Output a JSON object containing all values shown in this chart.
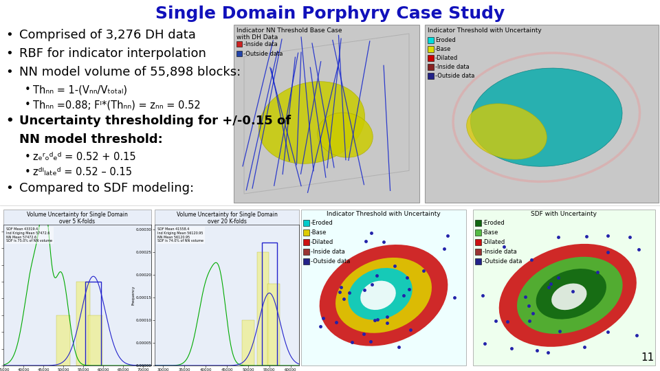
{
  "title": "Single Domain Porphyry Case Study",
  "title_color": "#1111BB",
  "title_fontsize": 20,
  "background_color": "#FFFFFF",
  "page_number": "11",
  "bullets": [
    {
      "indent": 0,
      "bold": false,
      "text": "Comprised of 3,276 DH data"
    },
    {
      "indent": 0,
      "bold": false,
      "text": "RBF for indicator interpolation"
    },
    {
      "indent": 0,
      "bold": false,
      "text": "NN model volume of 55,898 blocks:"
    },
    {
      "indent": 1,
      "bold": false,
      "text": "Thₙₙ = 1-(Vₙₙ/Vₜₒₜₐₗ)"
    },
    {
      "indent": 1,
      "bold": false,
      "text": "Thₙₙ =0.88; Fᴵ*(Thₙₙ) = zₙₙ = 0.52"
    },
    {
      "indent": 0,
      "bold": true,
      "text": "Uncertainty thresholding for +/-0.15 of"
    },
    {
      "indent": 0,
      "bold": true,
      "text": "NN model threshold:",
      "no_bullet": true
    },
    {
      "indent": 1,
      "bold": false,
      "text": "zₑʳₒᵈₑᵈ = 0.52 + 0.15"
    },
    {
      "indent": 1,
      "bold": false,
      "text": "zᵈᴵₗₐₜₑᵈ = 0.52 – 0.15"
    },
    {
      "indent": 0,
      "bold": false,
      "text": "Compared to SDF modeling:"
    }
  ],
  "top_img1_label": "Indicator NN Threshold Base Case\nwith DH Data",
  "top_img1_legend": [
    {
      "color": "#CC2222",
      "label": "-Inside data"
    },
    {
      "color": "#2244AA",
      "label": "-Outside data"
    }
  ],
  "top_img1_bg": "#D8D8D8",
  "top_img1_3d_face": "#C8C8C8",
  "top_img2_label": "Indicator Threshold with Uncertainty",
  "top_img2_legend": [
    {
      "color": "#00DDDD",
      "label": "Eroded"
    },
    {
      "color": "#DDDD00",
      "label": "-Base"
    },
    {
      "color": "#CC0000",
      "label": "-Dilated"
    },
    {
      "color": "#882222",
      "label": "-Inside data"
    },
    {
      "color": "#222288",
      "label": "-Outside data"
    }
  ],
  "top_img2_bg": "#D8D8D8",
  "bot_chart1_label": "Volume Uncertainty for Single Domain\nover 5 K-folds",
  "bot_chart1_bg": "#E8EEF8",
  "bot_chart2_label": "Volume Uncertainty for Single Domain\nover 20 K-folds",
  "bot_chart2_bg": "#E8EEF8",
  "bot_img1_label": "Indicator Threshold with Uncertainty",
  "bot_img1_legend": [
    {
      "color": "#00CCCC",
      "label": "-Eroded"
    },
    {
      "color": "#DDCC00",
      "label": "-Base"
    },
    {
      "color": "#CC1111",
      "label": "-Dilated"
    },
    {
      "color": "#993333",
      "label": "-Inside data"
    },
    {
      "color": "#222288",
      "label": "-Outside data"
    }
  ],
  "bot_img1_bg": "#DDEEEE",
  "bot_img2_label": "SDF with Uncertainty",
  "bot_img2_legend": [
    {
      "color": "#116611",
      "label": "-Eroded"
    },
    {
      "color": "#55BB44",
      "label": "-Base"
    },
    {
      "color": "#CC1111",
      "label": "-Dilated"
    },
    {
      "color": "#993333",
      "label": "-Inside data"
    },
    {
      "color": "#222288",
      "label": "-Outside data"
    }
  ],
  "bot_img2_bg": "#DDEEDD"
}
